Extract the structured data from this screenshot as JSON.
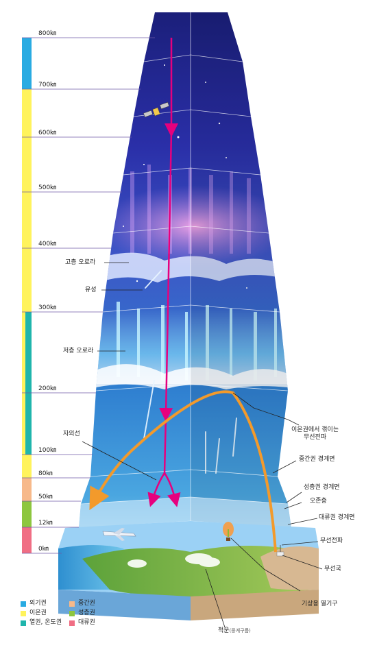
{
  "altitudes": [
    "800㎞",
    "700㎞",
    "600㎞",
    "500㎞",
    "400㎞",
    "300㎞",
    "200㎞",
    "100㎞",
    "80㎞",
    "50㎞",
    "12㎞",
    "0㎞"
  ],
  "callouts": {
    "high_aurora": "고층 오로라",
    "meteor": "유성",
    "low_aurora": "저층 오로라",
    "uv": "자외선",
    "radio_reflect": "이온권에서 꺾이는\n무선전파",
    "mesopause": "중간권 경계면",
    "stratopause": "성층권 경계면",
    "ozone": "오존층",
    "tropopause": "대류권 경계면",
    "radio_wave": "무선전파",
    "station": "무선국",
    "balloon": "기상용 열기구",
    "cloud_main": "적운",
    "cloud_sub": "(뭉게구름)"
  },
  "legend": [
    {
      "label": "외기권",
      "color": "#29ABE2"
    },
    {
      "label": "중간권",
      "color": "#F7B98A"
    },
    {
      "label": "이온권",
      "color": "#FFF35C"
    },
    {
      "label": "성층권",
      "color": "#8DC63F"
    },
    {
      "label": "열권, 온도권",
      "color": "#1FB5AC"
    },
    {
      "label": "대류권",
      "color": "#F06E84"
    }
  ]
}
